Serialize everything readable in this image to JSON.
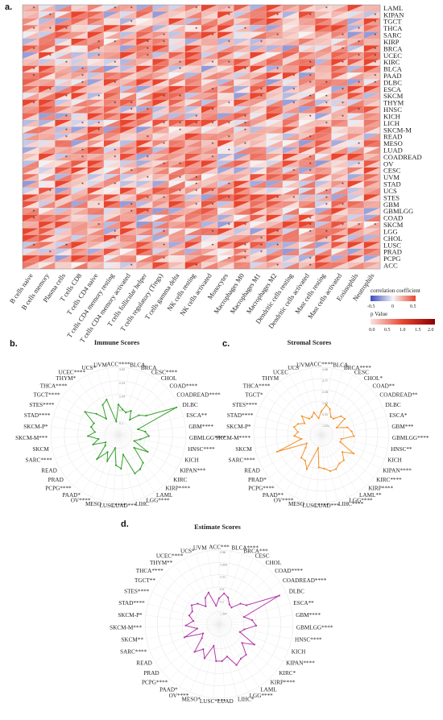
{
  "panels": {
    "a": "a.",
    "b": "b.",
    "c": "c.",
    "d": "d."
  },
  "legend": {
    "corr_title": "correlation coefficient",
    "corr_ticks": [
      "-0.5",
      "0",
      "0.5"
    ],
    "p_title": "p Value",
    "p_ticks": [
      "0.0",
      "0.5",
      "1.0",
      "1.5",
      "2.0"
    ],
    "colors": {
      "negative": "#3b4cc0",
      "neutral": "#f5f5f5",
      "positive": "#e8452f",
      "p_low": "#fbe3e0",
      "p_high": "#8b0000"
    }
  },
  "chart_data": [
    {
      "type": "heatmap",
      "title": "",
      "cancers": [
        "LAML",
        "KIPAN",
        "TGCT",
        "THCA",
        "SARC",
        "KIRP",
        "BRCA",
        "UCEC",
        "KIRC",
        "BLCA",
        "PAAD",
        "DLBC",
        "ESCA",
        "SKCM",
        "THYM",
        "HNSC",
        "KICH",
        "LICH",
        "SKCM-M",
        "READ",
        "MESO",
        "LUAD",
        "COADREAD",
        "OV",
        "CESC",
        "UVM",
        "STAD",
        "UCS",
        "STES",
        "GBM",
        "GBMLGG",
        "COAD",
        "SKCM",
        "LGG",
        "CHOL",
        "LUSC",
        "PRAD",
        "PCPG",
        "ACC"
      ],
      "cell_types": [
        "B cells naive",
        "B cells memory",
        "Plasma cells",
        "T cells CD8",
        "T cells CD4 naive",
        "T cells CD4 memory resting",
        "T cells CD4 memory activated",
        "T cells follicular helper",
        "T cells regulatory (Tregs)",
        "T cells gamma delta",
        "NK cells resting",
        "NK cells activated",
        "Monocytes",
        "Macrophages M0",
        "Macrophages M1",
        "Macrophages M2",
        "Dendritic cells resting",
        "Dendritic cells activated",
        "Mast cells resting",
        "Mast cells activated",
        "Eosinophils",
        "Neutrophils"
      ],
      "value_range": [
        -0.5,
        0.5
      ],
      "p_range": [
        0,
        2
      ]
    },
    {
      "type": "radar",
      "title": "Immune Scores",
      "color": "#33a02c",
      "rings": [
        "3.52",
        "2.23",
        "1.04",
        "0.5",
        "0.1"
      ],
      "labels": [
        "ACC****",
        "BLCA",
        "BRCA",
        "CESC****",
        "CHOL",
        "COAD****",
        "COADREAD****",
        "DLBC",
        "ESCA**",
        "GBM****",
        "GBMLGG****",
        "HNSC****",
        "KICH",
        "KIPAN***",
        "KIRC",
        "KIRP****",
        "LAML",
        "LGG****",
        "LIHC",
        "LUAD***",
        "LUSC****",
        "MESO",
        "OV****",
        "PAAD*",
        "PCPG****",
        "PRAD",
        "READ",
        "SARC****",
        "SKCM",
        "SKCM-M***",
        "SKCM-P*",
        "STAD****",
        "STES****",
        "TGCT****",
        "THCA****",
        "THYM*",
        "UCEC****",
        "UCS*",
        "UVM"
      ],
      "values": [
        0.45,
        0.38,
        0.35,
        0.4,
        0.28,
        0.42,
        0.5,
        0.95,
        0.3,
        0.4,
        0.45,
        0.33,
        0.25,
        0.5,
        0.3,
        0.55,
        0.6,
        0.62,
        0.3,
        0.5,
        0.45,
        0.2,
        0.42,
        0.3,
        0.48,
        0.25,
        0.22,
        0.4,
        0.3,
        0.45,
        0.35,
        0.42,
        0.4,
        0.6,
        0.45,
        0.3,
        0.5,
        0.55,
        0.2
      ]
    },
    {
      "type": "radar",
      "title": "Stromal Scores",
      "color": "#f5922a",
      "rings": [
        "4.08",
        "3.77",
        "2.28",
        "1.05",
        "0.41",
        "1.021"
      ],
      "labels": [
        "ACC****",
        "BLCA",
        "BRCA****",
        "CESC",
        "CHOL*",
        "COAD**",
        "COADREAD**",
        "DLBC",
        "ESCA*",
        "GBM***",
        "GBMLGG****",
        "HNSC**",
        "KICH",
        "KIPAN****",
        "KIRC****",
        "KIRP****",
        "LAML**",
        "LGG****",
        "LIHC****",
        "LUAD***",
        "LUSC****",
        "MESO",
        "OV****",
        "PAAD**",
        "PCPG****",
        "PRAD*",
        "READ",
        "SARC****",
        "SKCM",
        "SKCM-M****",
        "SKCM-P*",
        "STAD****",
        "STES****",
        "TGCT*",
        "THCA****",
        "THYM",
        "UCEC",
        "UCS",
        "UVM"
      ],
      "values": [
        0.35,
        0.45,
        0.4,
        0.3,
        0.3,
        0.4,
        0.42,
        0.25,
        0.4,
        0.45,
        0.48,
        0.3,
        0.3,
        0.55,
        0.4,
        0.5,
        0.5,
        0.55,
        0.55,
        0.5,
        0.48,
        0.2,
        0.55,
        0.45,
        0.45,
        0.3,
        0.25,
        0.7,
        0.3,
        0.4,
        0.35,
        0.42,
        0.38,
        0.3,
        0.4,
        0.3,
        0.3,
        0.35,
        0.25
      ]
    },
    {
      "type": "radar",
      "title": "Estimate Scores",
      "color": "#b23aa6",
      "rings": [
        "2.56",
        "1.903",
        "1.21",
        "0.5",
        "0.1",
        "1.007"
      ],
      "labels": [
        "ACC***",
        "BLCA****",
        "BRCA***",
        "CESC",
        "CHOL",
        "COAD****",
        "COADREAD****",
        "DLBC",
        "ESCA**",
        "GBM****",
        "GBMLGG****",
        "HNSC****",
        "KICH",
        "KIPAN****",
        "KIRC*",
        "KIRP****",
        "LAML",
        "LGG****",
        "LIHC*",
        "LUAD",
        "LUSC****",
        "MESO*",
        "OV****",
        "PAAD*",
        "PCPG****",
        "PRAD",
        "READ",
        "SARC****",
        "SKCM**",
        "SKCM-M***",
        "SKCM-P*",
        "STAD****",
        "STES****",
        "TGCT**",
        "THCA****",
        "THYM**",
        "UCEC****",
        "UCS*",
        "UVM"
      ],
      "values": [
        0.35,
        0.42,
        0.38,
        0.3,
        0.28,
        0.4,
        0.45,
        0.9,
        0.35,
        0.45,
        0.5,
        0.35,
        0.3,
        0.55,
        0.4,
        0.55,
        0.55,
        0.6,
        0.45,
        0.5,
        0.5,
        0.3,
        0.5,
        0.4,
        0.5,
        0.3,
        0.25,
        0.5,
        0.3,
        0.45,
        0.35,
        0.42,
        0.4,
        0.45,
        0.4,
        0.3,
        0.4,
        0.45,
        0.25
      ]
    }
  ]
}
